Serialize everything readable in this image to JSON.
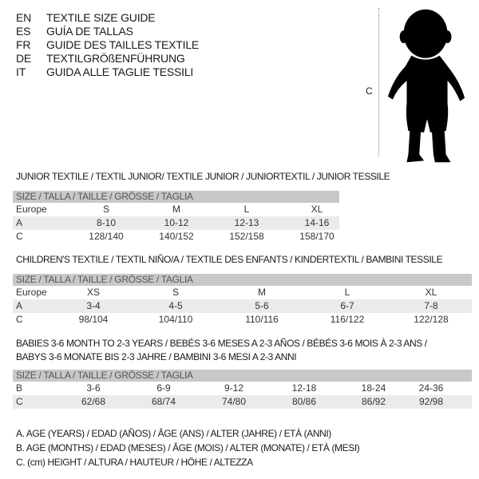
{
  "header": [
    {
      "code": "EN",
      "text": "TEXTILE SIZE GUIDE"
    },
    {
      "code": "ES",
      "text": "GUÍA DE TALLAS"
    },
    {
      "code": "FR",
      "text": "GUIDE DES TAILLES TEXTILE"
    },
    {
      "code": "DE",
      "text": "TEXTILGRÖßENFÜHRUNG"
    },
    {
      "code": "IT",
      "text": "GUIDA ALLE TAGLIE TESSILI"
    }
  ],
  "figure": {
    "measure_label": "C",
    "icon": "baby-silhouette-icon"
  },
  "size_header": "SIZE / TALLA / TAILLE / GRÖSSE / TAGLIA",
  "tables": [
    {
      "title": "JUNIOR TEXTILE / TEXTIL JUNIOR/ TEXTILE JUNIOR / JUNIORTEXTIL / JUNIOR TESSILE",
      "rows": [
        {
          "label": "Europe",
          "cells": [
            "S",
            "M",
            "L",
            "XL"
          ]
        },
        {
          "label": "A",
          "cells": [
            "8-10",
            "10-12",
            "12-13",
            "14-16"
          ]
        },
        {
          "label": "C",
          "cells": [
            "128/140",
            "140/152",
            "152/158",
            "158/170"
          ]
        }
      ]
    },
    {
      "title": "CHILDREN'S TEXTILE / TEXTIL NIÑO/A / TEXTILE DES ENFANTS / KINDERTEXTIL / BAMBINI TESSILE",
      "rows": [
        {
          "label": "Europe",
          "cells": [
            "XS",
            "S",
            "M",
            "L",
            "XL"
          ]
        },
        {
          "label": "A",
          "cells": [
            "3-4",
            "4-5",
            "5-6",
            "6-7",
            "7-8"
          ]
        },
        {
          "label": "C",
          "cells": [
            "98/104",
            "104/110",
            "110/116",
            "116/122",
            "122/128"
          ]
        }
      ]
    },
    {
      "title": "BABIES 3-6 MONTH TO 2-3 YEARS / BEBÉS 3-6 MESES A 2-3 AÑOS / BÉBÉS 3-6 MOIS À 2-3 ANS /",
      "title2": "BABYS 3-6 MONATE BIS 2-3 JAHRE / BAMBINI 3-6 MESI A 2-3 ANNI",
      "rows": [
        {
          "label": "B",
          "cells": [
            "3-6",
            "6-9",
            "9-12",
            "12-18",
            "18-24",
            "24-36"
          ]
        },
        {
          "label": "C",
          "cells": [
            "62/68",
            "68/74",
            "74/80",
            "80/86",
            "86/92",
            "92/98"
          ]
        }
      ]
    }
  ],
  "legend": [
    "A. AGE (YEARS) / EDAD (AÑOS) / ÂGE (ANS) / ALTER (JAHRE) / ETÀ (ANNI)",
    "B. AGE (MONTHS) / EDAD (MESES) / ÂGE (MOIS) / ALTER (MONATE) / ETÀ (MESI)",
    "C. (cm) HEIGHT / ALTURA / HAUTEUR / HÖHE / ALTEZZA"
  ]
}
